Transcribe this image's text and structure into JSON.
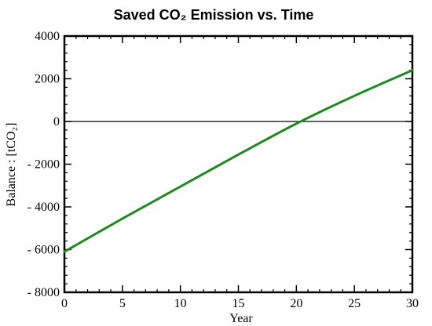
{
  "chart_data": {
    "type": "line",
    "title": "Saved CO₂ Emission vs. Time",
    "xlabel": "Year",
    "ylabel": "Balance : [tCO₂]",
    "xlim": [
      0,
      30
    ],
    "ylim": [
      -8000,
      4000
    ],
    "x_ticks": [
      0,
      5,
      10,
      15,
      20,
      25,
      30
    ],
    "x_tick_labels": [
      "0",
      "5",
      "10",
      "15",
      "20",
      "25",
      "30"
    ],
    "y_ticks": [
      -8000,
      -6000,
      -4000,
      -2000,
      0,
      2000,
      4000
    ],
    "y_tick_labels": [
      "- 8000",
      "- 6000",
      "- 4000",
      "- 2000",
      "0",
      "2000",
      "4000"
    ],
    "grid": false,
    "reference_line_y": 0,
    "colors": {
      "series": "#1f8a1f",
      "reference_line": "#000000",
      "frame": "#000000"
    },
    "series": [
      {
        "x": [
          0,
          5,
          10,
          15,
          20,
          25,
          30
        ],
        "values": [
          -6100,
          -4550,
          -3050,
          -1550,
          -100,
          1200,
          2400
        ]
      }
    ]
  }
}
